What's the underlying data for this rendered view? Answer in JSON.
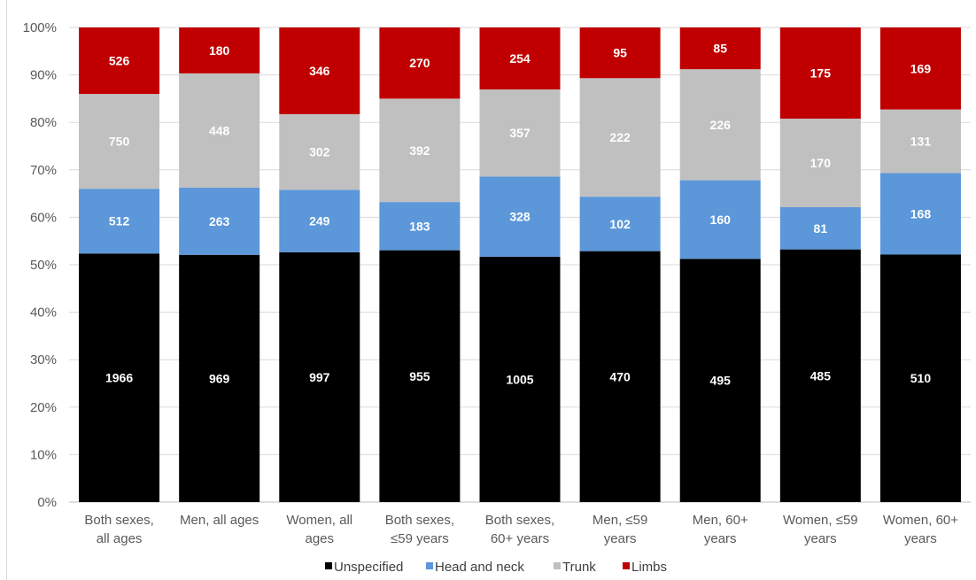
{
  "chart_data": {
    "type": "bar",
    "stacked": true,
    "normalized": true,
    "categories": [
      [
        "Both sexes,",
        "all ages"
      ],
      [
        "Men, all ages"
      ],
      [
        "Women, all",
        "ages"
      ],
      [
        "Both sexes,",
        "≤59 years"
      ],
      [
        "Both sexes,",
        "60+ years"
      ],
      [
        "Men, ≤59",
        "years"
      ],
      [
        "Men, 60+",
        "years"
      ],
      [
        "Women, ≤59",
        "years"
      ],
      [
        "Women, 60+",
        "years"
      ]
    ],
    "series": [
      {
        "name": "Unspecified",
        "color": "#000000",
        "label_color": "#ffffff",
        "values": [
          1966,
          969,
          997,
          955,
          1005,
          470,
          495,
          485,
          510
        ]
      },
      {
        "name": "Head and neck",
        "color": "#5b97d9",
        "label_color": "#ffffff",
        "values": [
          512,
          263,
          249,
          183,
          328,
          102,
          160,
          81,
          168
        ]
      },
      {
        "name": "Trunk",
        "color": "#c0c0c0",
        "label_color": "#ffffff",
        "values": [
          750,
          448,
          302,
          392,
          357,
          222,
          226,
          170,
          131
        ]
      },
      {
        "name": "Limbs",
        "color": "#c00000",
        "label_color": "#ffffff",
        "values": [
          526,
          180,
          346,
          270,
          254,
          95,
          85,
          175,
          169
        ]
      }
    ],
    "y_ticks": [
      "0%",
      "10%",
      "20%",
      "30%",
      "40%",
      "50%",
      "60%",
      "70%",
      "80%",
      "90%",
      "100%"
    ],
    "ylim": [
      0,
      100
    ],
    "grid": true,
    "legend_position": "bottom"
  }
}
